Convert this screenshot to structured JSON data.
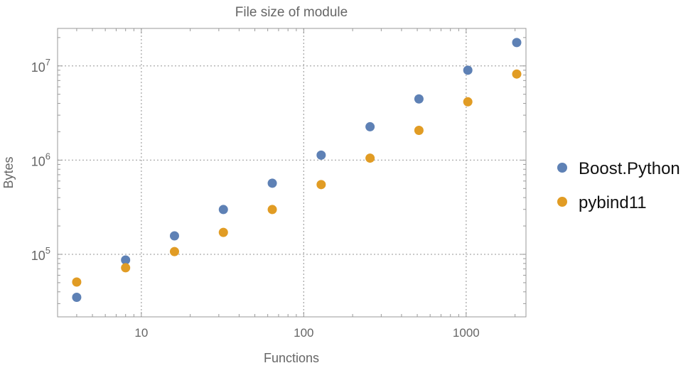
{
  "chart_data": {
    "type": "scatter",
    "title": "File size of module",
    "xlabel": "Functions",
    "ylabel": "Bytes",
    "xscale": "log",
    "yscale": "log",
    "xlim": [
      3.05,
      2335
    ],
    "ylim": [
      21700,
      25000000
    ],
    "grid": true,
    "legend_position": "right",
    "x_ticks": [
      {
        "value": 10,
        "label": "10"
      },
      {
        "value": 100,
        "label": "100"
      },
      {
        "value": 1000,
        "label": "1000"
      }
    ],
    "y_ticks": [
      {
        "value": 100000,
        "base": "10",
        "exp": "5"
      },
      {
        "value": 1000000,
        "base": "10",
        "exp": "6"
      },
      {
        "value": 10000000,
        "base": "10",
        "exp": "7"
      }
    ],
    "x": [
      4,
      8,
      16,
      32,
      64,
      128,
      256,
      512,
      1024,
      2048
    ],
    "series": [
      {
        "name": "Boost.Python",
        "color": "#5E81B5",
        "values": [
          35000,
          87000,
          157000,
          299000,
          569000,
          1130000,
          2260000,
          4460000,
          9000000,
          17700000
        ]
      },
      {
        "name": "pybind11",
        "color": "#E19C24",
        "values": [
          50800,
          72000,
          107000,
          171000,
          299000,
          550000,
          1050000,
          2070000,
          4160000,
          8200000
        ]
      }
    ]
  }
}
